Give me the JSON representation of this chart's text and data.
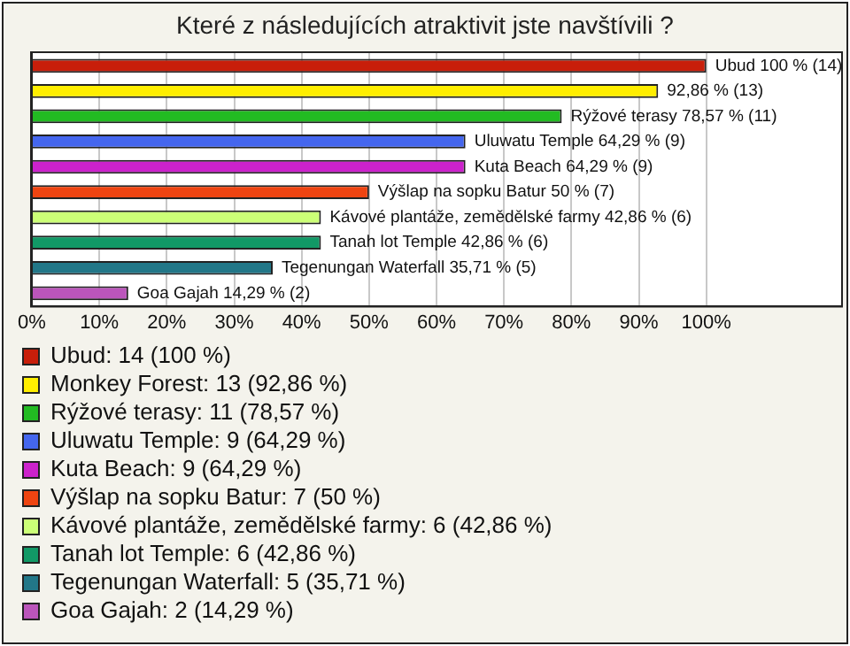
{
  "chart_data": {
    "type": "bar",
    "orientation": "horizontal",
    "title": "Které z následujících atraktivit jste navštívili ?",
    "categories": [
      null,
      null,
      null,
      null,
      null,
      null,
      null,
      null,
      null,
      null
    ],
    "series": [
      {
        "name": "Ubud: 14 (100 %)",
        "color": "#c81e0a",
        "values": [
          100,
          null,
          null,
          null,
          null,
          null,
          null,
          null,
          null,
          null
        ],
        "value_labels": [
          "Ubud 100 % (14)",
          null,
          null,
          null,
          null,
          null,
          null,
          null,
          null,
          null
        ]
      },
      {
        "name": "Monkey Forest: 13 (92,86 %)",
        "color": "#ffee00",
        "values": [
          null,
          92.86,
          null,
          null,
          null,
          null,
          null,
          null,
          null,
          null
        ],
        "value_labels": [
          null,
          "92,86 % (13)",
          null,
          null,
          null,
          null,
          null,
          null,
          null,
          null
        ]
      },
      {
        "name": "Rýžové terasy: 11 (78,57 %)",
        "color": "#22bb22",
        "values": [
          null,
          null,
          78.57,
          null,
          null,
          null,
          null,
          null,
          null,
          null
        ],
        "value_labels": [
          null,
          null,
          "Rýžové terasy 78,57 % (11)",
          null,
          null,
          null,
          null,
          null,
          null,
          null
        ]
      },
      {
        "name": "Uluwatu Temple: 9 (64,29 %)",
        "color": "#4466ee",
        "values": [
          null,
          null,
          null,
          64.29,
          null,
          null,
          null,
          null,
          null,
          null
        ],
        "value_labels": [
          null,
          null,
          null,
          "Uluwatu Temple 64,29 % (9)",
          null,
          null,
          null,
          null,
          null,
          null
        ]
      },
      {
        "name": "Kuta Beach: 9 (64,29 %)",
        "color": "#cc22cc",
        "values": [
          null,
          null,
          null,
          null,
          64.29,
          null,
          null,
          null,
          null,
          null
        ],
        "value_labels": [
          null,
          null,
          null,
          null,
          "Kuta Beach 64,29 % (9)",
          null,
          null,
          null,
          null,
          null
        ]
      },
      {
        "name": "Výšlap na sopku Batur: 7 (50 %)",
        "color": "#ee4411",
        "values": [
          null,
          null,
          null,
          null,
          null,
          50,
          null,
          null,
          null,
          null
        ],
        "value_labels": [
          null,
          null,
          null,
          null,
          null,
          "Výšlap na sopku Batur 50 % (7)",
          null,
          null,
          null,
          null
        ]
      },
      {
        "name": "Kávové plantáže, zemědělské farmy: 6 (42,86 %)",
        "color": "#ccff77",
        "values": [
          null,
          null,
          null,
          null,
          null,
          null,
          42.86,
          null,
          null,
          null
        ],
        "value_labels": [
          null,
          null,
          null,
          null,
          null,
          null,
          "Kávové plantáže, zemědělské farmy 42,86 % (6)",
          null,
          null,
          null
        ]
      },
      {
        "name": "Tanah lot Temple: 6 (42,86 %)",
        "color": "#119966",
        "values": [
          null,
          null,
          null,
          null,
          null,
          null,
          null,
          42.86,
          null,
          null
        ],
        "value_labels": [
          null,
          null,
          null,
          null,
          null,
          null,
          null,
          "Tanah lot Temple 42,86 % (6)",
          null,
          null
        ]
      },
      {
        "name": "Tegenungan Waterfall: 5 (35,71 %)",
        "color": "#227788",
        "values": [
          null,
          null,
          null,
          null,
          null,
          null,
          null,
          null,
          35.71,
          null
        ],
        "value_labels": [
          null,
          null,
          null,
          null,
          null,
          null,
          null,
          null,
          "Tegenungan Waterfall 35,71 % (5)",
          null
        ]
      },
      {
        "name": "Goa Gajah: 2 (14,29 %)",
        "color": "#bb55bb",
        "values": [
          null,
          null,
          null,
          null,
          null,
          null,
          null,
          null,
          null,
          14.29
        ],
        "value_labels": [
          null,
          null,
          null,
          null,
          null,
          null,
          null,
          null,
          null,
          "Goa Gajah 14,29 % (2)"
        ]
      }
    ],
    "xlim": [
      0,
      120
    ],
    "xticks": [
      {
        "value": 0,
        "label": "0%"
      },
      {
        "value": 10,
        "label": "10%"
      },
      {
        "value": 20,
        "label": "20%"
      },
      {
        "value": 30,
        "label": "30%"
      },
      {
        "value": 40,
        "label": "40%"
      },
      {
        "value": 50,
        "label": "50%"
      },
      {
        "value": 60,
        "label": "60%"
      },
      {
        "value": 70,
        "label": "70%"
      },
      {
        "value": 80,
        "label": "80%"
      },
      {
        "value": 90,
        "label": "90%"
      },
      {
        "value": 100,
        "label": "100%"
      }
    ],
    "grid": "x",
    "legend": "bottom",
    "tick_labels": "x"
  }
}
